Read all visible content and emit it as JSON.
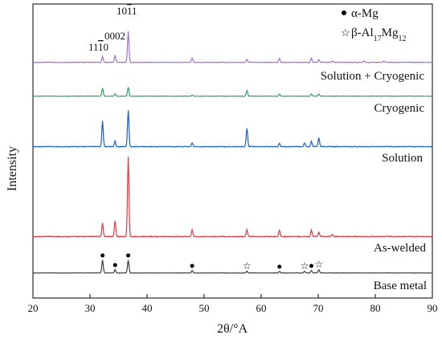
{
  "chart_data": {
    "type": "line",
    "xlabel": "2θ/°A",
    "ylabel": "Intensity",
    "xlim": [
      20,
      90
    ],
    "xticks": [
      20,
      30,
      40,
      50,
      60,
      70,
      80,
      90
    ],
    "ytick_labels_shown": false,
    "grid": false,
    "line_colors": {
      "Base metal": "#3a3a3a",
      "As-welded": "#e0393e",
      "Solution": "#1a5fc8",
      "Cryogenic": "#2aa35f",
      "Solution + Cryogenic": "#a66fd3"
    },
    "series": [
      {
        "name": "Base metal",
        "baseline_rel": 0.05,
        "peaks": [
          [
            32.2,
            0.16
          ],
          [
            34.4,
            0.04
          ],
          [
            36.7,
            0.16
          ],
          [
            47.9,
            0.03
          ],
          [
            57.5,
            0.02
          ],
          [
            63.2,
            0.02
          ],
          [
            67.6,
            0.02
          ],
          [
            68.8,
            0.03
          ],
          [
            70.1,
            0.04
          ]
        ]
      },
      {
        "name": "As-welded",
        "baseline_rel": 0.05,
        "peaks": [
          [
            32.2,
            0.06
          ],
          [
            34.4,
            0.07
          ],
          [
            36.7,
            0.36
          ],
          [
            47.9,
            0.03
          ],
          [
            57.5,
            0.03
          ],
          [
            63.2,
            0.03
          ],
          [
            68.8,
            0.03
          ],
          [
            70.1,
            0.02
          ],
          [
            72.5,
            0.01
          ]
        ]
      },
      {
        "name": "Solution",
        "baseline_rel": 0.05,
        "peaks": [
          [
            32.2,
            0.14
          ],
          [
            34.4,
            0.03
          ],
          [
            36.7,
            0.2
          ],
          [
            47.9,
            0.02
          ],
          [
            57.5,
            0.1
          ],
          [
            63.2,
            0.02
          ],
          [
            67.6,
            0.02
          ],
          [
            68.8,
            0.03
          ],
          [
            70.1,
            0.05
          ]
        ]
      },
      {
        "name": "Cryogenic",
        "baseline_rel": 0.05,
        "peaks": [
          [
            32.2,
            0.07
          ],
          [
            34.4,
            0.02
          ],
          [
            36.7,
            0.08
          ],
          [
            47.9,
            0.01
          ],
          [
            57.5,
            0.05
          ],
          [
            63.2,
            0.02
          ],
          [
            68.8,
            0.02
          ],
          [
            70.1,
            0.02
          ]
        ]
      },
      {
        "name": "Solution + Cryogenic",
        "baseline_rel": 0.05,
        "peaks": [
          [
            32.2,
            0.04
          ],
          [
            34.4,
            0.05
          ],
          [
            36.7,
            0.22
          ],
          [
            47.9,
            0.03
          ],
          [
            57.5,
            0.02
          ],
          [
            63.2,
            0.03
          ],
          [
            68.8,
            0.03
          ],
          [
            70.1,
            0.02
          ],
          [
            72.5,
            0.01
          ],
          [
            78.0,
            0.01
          ],
          [
            81.5,
            0.01
          ]
        ]
      }
    ],
    "peak_index_labels": [
      "11$\\bar{1}$0",
      "0002",
      "10$\\bar{1}$1"
    ],
    "legend": {
      "alpha_mg_label": "α-Mg",
      "beta_label": "β-Al17Mg12"
    },
    "base_metal_markers": {
      "alpha_mg_dots": [
        32.2,
        34.4,
        36.7,
        47.9,
        63.2,
        68.8
      ],
      "beta_stars": [
        57.5,
        67.6,
        70.1
      ]
    }
  }
}
